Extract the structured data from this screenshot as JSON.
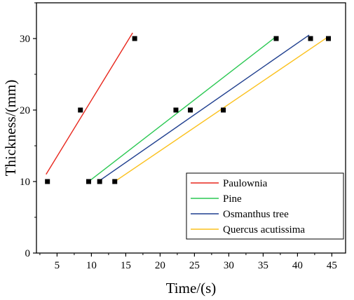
{
  "chart_data": {
    "type": "scatter",
    "xlabel": "Time/(s)",
    "ylabel": "Thickness/(mm)",
    "xlim": [
      2,
      47
    ],
    "ylim": [
      0,
      35
    ],
    "xticks": [
      5,
      10,
      15,
      20,
      25,
      30,
      35,
      40,
      45
    ],
    "yticks": [
      0,
      10,
      20,
      30
    ],
    "legend_position": "bottom-right",
    "series": [
      {
        "name": "Paulownia",
        "color": "#e8271d",
        "points": [
          [
            3.6,
            10
          ],
          [
            8.4,
            20
          ],
          [
            16.3,
            30
          ]
        ],
        "fit": [
          [
            3.4,
            11.0
          ],
          [
            16.0,
            30.8
          ]
        ]
      },
      {
        "name": "Pine",
        "color": "#2ac852",
        "points": [
          [
            9.6,
            10
          ],
          [
            22.3,
            20
          ],
          [
            36.9,
            30
          ]
        ],
        "fit": [
          [
            9.6,
            10.0
          ],
          [
            36.8,
            30.2
          ]
        ]
      },
      {
        "name": "Osmanthus tree",
        "color": "#1f3f8f",
        "points": [
          [
            11.2,
            10
          ],
          [
            24.4,
            20
          ],
          [
            41.9,
            30
          ]
        ],
        "fit": [
          [
            11.0,
            10.0
          ],
          [
            41.7,
            30.5
          ]
        ]
      },
      {
        "name": "Quercus acutissima",
        "color": "#fbc11e",
        "points": [
          [
            13.4,
            10
          ],
          [
            29.2,
            20
          ],
          [
            44.5,
            30
          ]
        ],
        "fit": [
          [
            13.4,
            10.0
          ],
          [
            44.4,
            30.2
          ]
        ]
      }
    ]
  }
}
